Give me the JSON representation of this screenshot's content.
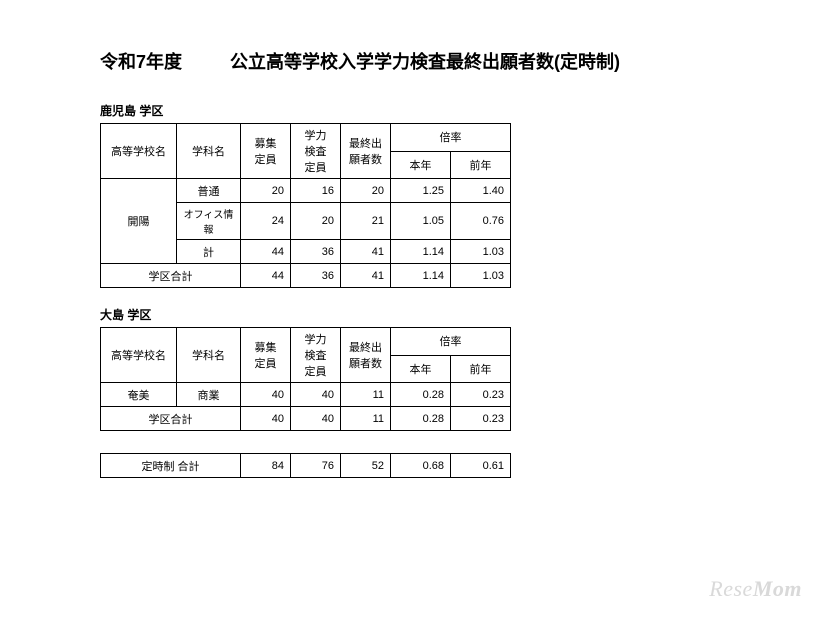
{
  "title_left": "令和7年度",
  "title_main": "公立高等学校入学学力検査最終出願者数(定時制)",
  "headers": {
    "school": "高等学校名",
    "dept": "学科名",
    "capacity": "募集\n定員",
    "exam_capacity": "学力\n検査\n定員",
    "applicants": "最終出\n願者数",
    "rate_group": "倍率",
    "rate_this": "本年",
    "rate_prev": "前年"
  },
  "districts": [
    {
      "label": "鹿児島  学区",
      "schools": [
        {
          "name": "開陽",
          "rows": [
            {
              "dept": "普通",
              "cap": 20,
              "exam": 16,
              "app": 20,
              "rate": "1.25",
              "prev": "1.40"
            },
            {
              "dept": "オフィス情報",
              "cap": 24,
              "exam": 20,
              "app": 21,
              "rate": "1.05",
              "prev": "0.76"
            },
            {
              "dept": "計",
              "cap": 44,
              "exam": 36,
              "app": 41,
              "rate": "1.14",
              "prev": "1.03"
            }
          ]
        }
      ],
      "total_label": "学区合計",
      "total": {
        "cap": 44,
        "exam": 36,
        "app": 41,
        "rate": "1.14",
        "prev": "1.03"
      }
    },
    {
      "label": "大島  学区",
      "schools": [
        {
          "name": "奄美",
          "rows": [
            {
              "dept": "商業",
              "cap": 40,
              "exam": 40,
              "app": 11,
              "rate": "0.28",
              "prev": "0.23"
            }
          ]
        }
      ],
      "total_label": "学区合計",
      "total": {
        "cap": 40,
        "exam": 40,
        "app": 11,
        "rate": "0.28",
        "prev": "0.23"
      }
    }
  ],
  "grand_total": {
    "label": "定時制  合計",
    "cap": 84,
    "exam": 76,
    "app": 52,
    "rate": "0.68",
    "prev": "0.61"
  },
  "watermark": {
    "left": "Rese",
    "right": "Mom"
  },
  "table_style": {
    "border_color": "#000000",
    "font_size": 11,
    "header_font_size": 11,
    "small_font_size": 10
  }
}
